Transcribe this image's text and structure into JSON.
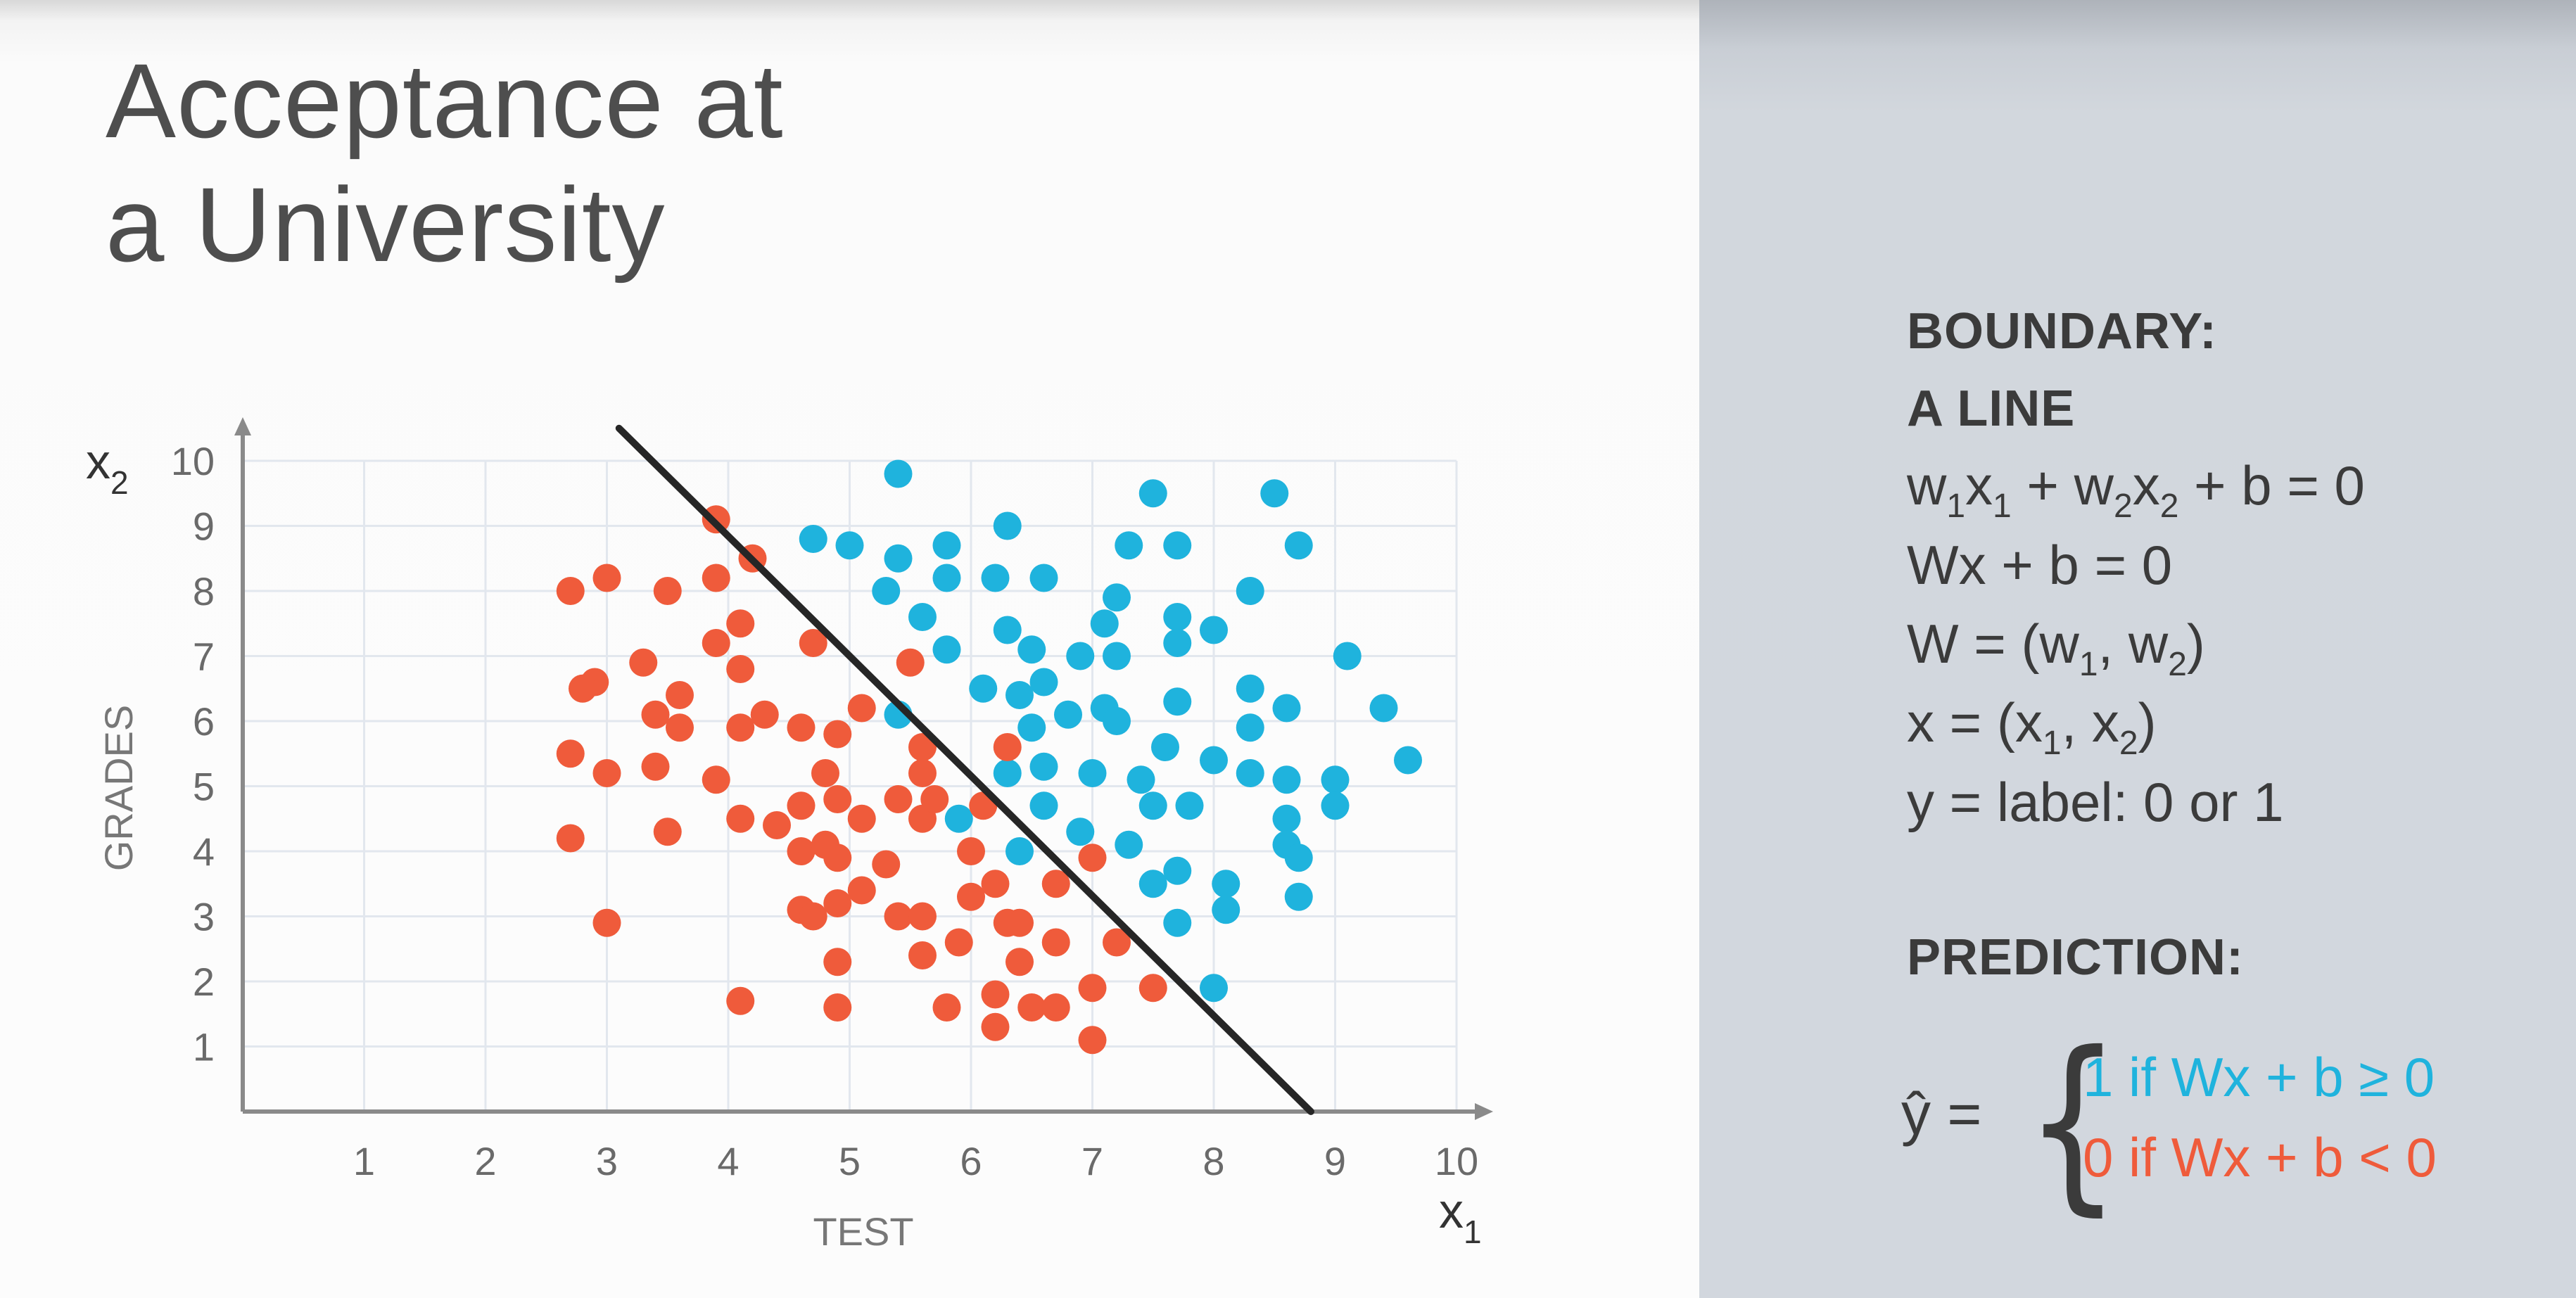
{
  "title_lines": [
    "Acceptance at",
    "a University"
  ],
  "colors": {
    "accepted": "#1fb3dd",
    "rejected": "#ef5b3b",
    "boundary": "#262626",
    "axis": "#8a8a8a",
    "grid": "#e2e7ee"
  },
  "panel": {
    "boundary_heading": "BOUNDARY:",
    "boundary_subheading": "A LINE",
    "equations": [
      [
        "w",
        "1",
        "x",
        "1",
        " + w",
        "2",
        "x",
        "2",
        " + b = 0"
      ],
      [
        "Wx + b = 0"
      ],
      [
        "W = (w",
        "1",
        ", w",
        "2",
        ")"
      ],
      [
        "x = (x",
        "1",
        ", x",
        "2",
        ")"
      ],
      [
        "y = label: 0 or 1"
      ]
    ],
    "prediction_heading": "PREDICTION:",
    "yhat": "ŷ =",
    "brace": "{",
    "case_1": "1 if Wx + b ≥ 0",
    "case_0": "0 if Wx + b < 0"
  },
  "chart_data": {
    "type": "scatter",
    "xlabel": "TEST",
    "ylabel": "GRADES",
    "x_axis_symbol": "x",
    "x_axis_symbol_sub": "1",
    "y_axis_symbol": "x",
    "y_axis_symbol_sub": "2",
    "xlim": [
      0,
      10
    ],
    "ylim": [
      0,
      10
    ],
    "xticks": [
      1,
      2,
      3,
      4,
      5,
      6,
      7,
      8,
      9,
      10
    ],
    "yticks": [
      1,
      2,
      3,
      4,
      5,
      6,
      7,
      8,
      9,
      10
    ],
    "grid": true,
    "boundary_line": {
      "x": [
        3.1,
        8.8
      ],
      "y": [
        10.5,
        0
      ]
    },
    "series": [
      {
        "label": "1",
        "points": [
          [
            5.4,
            9.8
          ],
          [
            7.5,
            9.5
          ],
          [
            8.5,
            9.5
          ],
          [
            4.7,
            8.8
          ],
          [
            5.0,
            8.7
          ],
          [
            5.4,
            8.5
          ],
          [
            5.8,
            8.7
          ],
          [
            6.3,
            9.0
          ],
          [
            7.3,
            8.7
          ],
          [
            7.7,
            8.7
          ],
          [
            8.7,
            8.7
          ],
          [
            5.3,
            8.0
          ],
          [
            5.8,
            8.2
          ],
          [
            6.2,
            8.2
          ],
          [
            6.6,
            8.2
          ],
          [
            7.2,
            7.9
          ],
          [
            8.3,
            8.0
          ],
          [
            5.6,
            7.6
          ],
          [
            6.3,
            7.4
          ],
          [
            7.1,
            7.5
          ],
          [
            7.7,
            7.6
          ],
          [
            8.0,
            7.4
          ],
          [
            5.8,
            7.1
          ],
          [
            6.5,
            7.1
          ],
          [
            6.9,
            7.0
          ],
          [
            7.2,
            7.0
          ],
          [
            7.7,
            7.2
          ],
          [
            9.1,
            7.0
          ],
          [
            5.4,
            6.1
          ],
          [
            6.1,
            6.5
          ],
          [
            6.4,
            6.4
          ],
          [
            6.6,
            6.6
          ],
          [
            6.8,
            6.1
          ],
          [
            7.1,
            6.2
          ],
          [
            7.2,
            6.0
          ],
          [
            7.7,
            6.3
          ],
          [
            8.3,
            6.5
          ],
          [
            8.6,
            6.2
          ],
          [
            9.4,
            6.2
          ],
          [
            6.5,
            5.9
          ],
          [
            6.3,
            5.2
          ],
          [
            6.6,
            5.3
          ],
          [
            7.0,
            5.2
          ],
          [
            7.4,
            5.1
          ],
          [
            7.6,
            5.6
          ],
          [
            8.0,
            5.4
          ],
          [
            8.3,
            5.2
          ],
          [
            8.6,
            5.1
          ],
          [
            9.0,
            5.1
          ],
          [
            9.6,
            5.4
          ],
          [
            8.3,
            5.9
          ],
          [
            5.9,
            4.5
          ],
          [
            6.6,
            4.7
          ],
          [
            7.5,
            4.7
          ],
          [
            7.8,
            4.7
          ],
          [
            8.6,
            4.5
          ],
          [
            9.0,
            4.7
          ],
          [
            6.4,
            4.0
          ],
          [
            6.9,
            4.3
          ],
          [
            7.3,
            4.1
          ],
          [
            8.6,
            4.1
          ],
          [
            8.7,
            3.9
          ],
          [
            7.5,
            3.5
          ],
          [
            7.7,
            3.7
          ],
          [
            8.1,
            3.5
          ],
          [
            8.7,
            3.3
          ],
          [
            8.1,
            3.1
          ],
          [
            7.7,
            2.9
          ],
          [
            8.0,
            1.9
          ]
        ]
      },
      {
        "label": "0",
        "points": [
          [
            3.9,
            9.1
          ],
          [
            4.2,
            8.5
          ],
          [
            3.0,
            8.2
          ],
          [
            3.5,
            8.0
          ],
          [
            3.9,
            8.2
          ],
          [
            2.7,
            8.0
          ],
          [
            4.1,
            7.5
          ],
          [
            4.7,
            7.2
          ],
          [
            3.9,
            7.2
          ],
          [
            3.3,
            6.9
          ],
          [
            4.1,
            6.8
          ],
          [
            5.5,
            6.9
          ],
          [
            2.9,
            6.6
          ],
          [
            2.8,
            6.5
          ],
          [
            3.6,
            6.4
          ],
          [
            3.4,
            6.1
          ],
          [
            4.3,
            6.1
          ],
          [
            3.6,
            5.9
          ],
          [
            4.1,
            5.9
          ],
          [
            4.6,
            5.9
          ],
          [
            4.9,
            5.8
          ],
          [
            5.1,
            6.2
          ],
          [
            5.6,
            5.6
          ],
          [
            6.3,
            5.6
          ],
          [
            2.7,
            5.5
          ],
          [
            3.0,
            5.2
          ],
          [
            3.4,
            5.3
          ],
          [
            3.9,
            5.1
          ],
          [
            4.8,
            5.2
          ],
          [
            5.6,
            5.2
          ],
          [
            4.1,
            4.5
          ],
          [
            4.4,
            4.4
          ],
          [
            4.6,
            4.7
          ],
          [
            4.9,
            4.8
          ],
          [
            5.1,
            4.5
          ],
          [
            5.4,
            4.8
          ],
          [
            5.6,
            4.5
          ],
          [
            5.7,
            4.8
          ],
          [
            6.1,
            4.7
          ],
          [
            2.7,
            4.2
          ],
          [
            3.5,
            4.3
          ],
          [
            4.6,
            4.0
          ],
          [
            4.8,
            4.1
          ],
          [
            4.9,
            3.9
          ],
          [
            5.3,
            3.8
          ],
          [
            6.0,
            4.0
          ],
          [
            7.0,
            3.9
          ],
          [
            5.1,
            3.4
          ],
          [
            6.2,
            3.5
          ],
          [
            6.0,
            3.3
          ],
          [
            6.7,
            3.5
          ],
          [
            4.6,
            3.1
          ],
          [
            4.7,
            3.0
          ],
          [
            4.9,
            3.2
          ],
          [
            5.4,
            3.0
          ],
          [
            5.6,
            3.0
          ],
          [
            3.0,
            2.9
          ],
          [
            5.6,
            2.4
          ],
          [
            5.9,
            2.6
          ],
          [
            6.4,
            2.3
          ],
          [
            6.7,
            2.6
          ],
          [
            7.2,
            2.6
          ],
          [
            4.9,
            2.3
          ],
          [
            6.4,
            2.9
          ],
          [
            7.0,
            1.9
          ],
          [
            7.5,
            1.9
          ],
          [
            6.2,
            1.8
          ],
          [
            5.8,
            1.6
          ],
          [
            6.5,
            1.6
          ],
          [
            6.7,
            1.6
          ],
          [
            4.1,
            1.7
          ],
          [
            4.9,
            1.6
          ],
          [
            6.2,
            1.3
          ],
          [
            7.0,
            1.1
          ],
          [
            6.3,
            2.9
          ]
        ]
      }
    ]
  }
}
